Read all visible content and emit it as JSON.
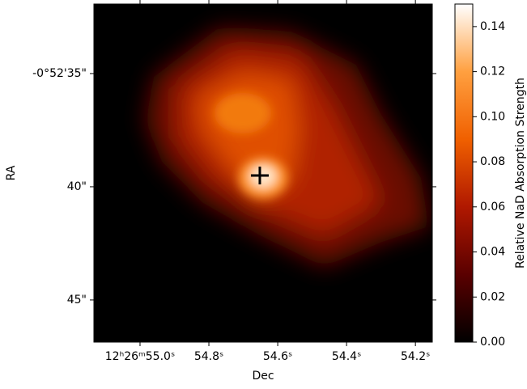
{
  "chart_data": {
    "type": "image",
    "x_label": "Dec",
    "y_label": "RA",
    "xlim": [
      55.134,
      54.151
    ],
    "xticks": [
      {
        "value": 55.0,
        "label": "12ʰ26ᵐ55.0ˢ"
      },
      {
        "value": 54.8,
        "label": "54.8ˢ"
      },
      {
        "value": 54.6,
        "label": "54.6ˢ"
      },
      {
        "value": 54.4,
        "label": "54.4ˢ"
      },
      {
        "value": 54.2,
        "label": "54.2ˢ"
      }
    ],
    "ylim": [
      31.93,
      46.86
    ],
    "yticks": [
      {
        "value": 35,
        "label": "-0°52'35\""
      },
      {
        "value": 40,
        "label": "40\""
      },
      {
        "value": 45,
        "label": "45\""
      }
    ],
    "marker": {
      "x": 54.652,
      "y": 39.5
    },
    "colorbar": {
      "label": "Relative NaD Absorption Strength",
      "clim": [
        0,
        0.15
      ],
      "ticks": [
        {
          "value": 0,
          "label": "0.00"
        },
        {
          "value": 0.02,
          "label": "0.02"
        },
        {
          "value": 0.04,
          "label": "0.04"
        },
        {
          "value": 0.06,
          "label": "0.06"
        },
        {
          "value": 0.08,
          "label": "0.08"
        },
        {
          "value": 0.1,
          "label": "0.10"
        },
        {
          "value": 0.12,
          "label": "0.12"
        },
        {
          "value": 0.14,
          "label": "0.14"
        }
      ],
      "colors": [
        "#000000",
        "#5a0000",
        "#b01800",
        "#f06000",
        "#ffa040",
        "#ffffff"
      ]
    }
  }
}
